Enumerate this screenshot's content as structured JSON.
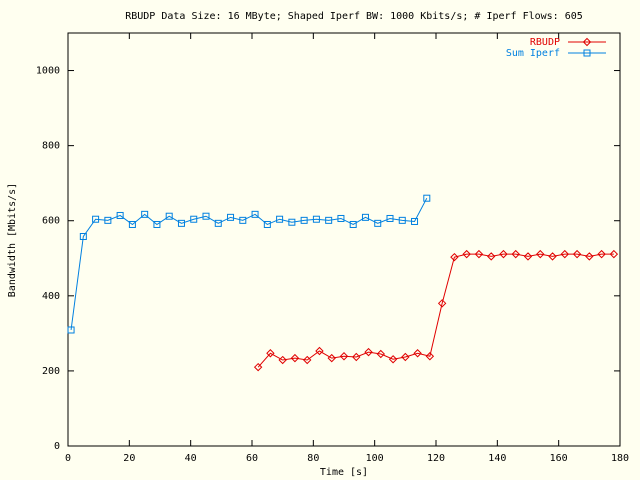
{
  "chart_data": {
    "type": "line",
    "title": "RBUDP Data Size: 16 MByte; Shaped Iperf BW: 1000 Kbits/s; # Iperf Flows: 605",
    "x_label": "Time [s]",
    "y_label": "Bandwidth [Mbits/s]",
    "xlim": [
      0,
      180
    ],
    "xticks": [
      0,
      20,
      40,
      60,
      80,
      100,
      120,
      140,
      160,
      180
    ],
    "ylim": [
      0,
      1100
    ],
    "yticks": [
      0,
      200,
      400,
      600,
      800,
      1000
    ],
    "legend": "top-right",
    "series": [
      {
        "name": "RBUDP",
        "color": "#e00000",
        "marker": "diamond",
        "x": [
          62,
          66,
          70,
          74,
          78,
          82,
          86,
          90,
          94,
          98,
          102,
          106,
          110,
          114,
          118,
          122,
          126,
          130,
          134,
          138,
          142,
          146,
          150,
          154,
          158,
          162,
          166,
          170,
          174,
          178
        ],
        "values": [
          210,
          247,
          229,
          234,
          229,
          253,
          234,
          239,
          237,
          250,
          245,
          231,
          237,
          247,
          239,
          380,
          503,
          511,
          511,
          505,
          511,
          511,
          505,
          511,
          505,
          511,
          511,
          505,
          511,
          511
        ]
      },
      {
        "name": "Sum Iperf",
        "color": "#0080e0",
        "marker": "square",
        "x": [
          1,
          5,
          9,
          13,
          17,
          21,
          25,
          29,
          33,
          37,
          41,
          45,
          49,
          53,
          57,
          61,
          65,
          69,
          73,
          77,
          81,
          85,
          89,
          93,
          97,
          101,
          105,
          109,
          113,
          117
        ],
        "values": [
          309,
          558,
          604,
          601,
          614,
          590,
          617,
          590,
          612,
          593,
          604,
          612,
          593,
          609,
          601,
          617,
          590,
          604,
          596,
          601,
          604,
          601,
          606,
          590,
          609,
          593,
          606,
          601,
          598,
          660
        ]
      }
    ]
  }
}
